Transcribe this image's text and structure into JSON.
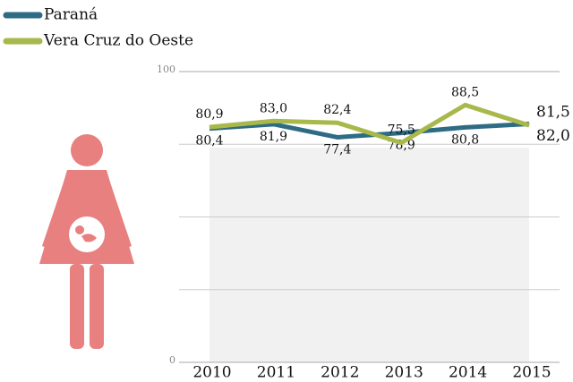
{
  "chart_data": {
    "type": "line",
    "categories": [
      "2010",
      "2011",
      "2012",
      "2013",
      "2014",
      "2015"
    ],
    "series": [
      {
        "name": "Paraná",
        "color": "#2e6b84",
        "values": [
          80.4,
          81.9,
          77.4,
          78.9,
          80.8,
          82.0
        ],
        "value_labels": [
          "80,4",
          "81,9",
          "77,4",
          "78,9",
          "80,8",
          "82,0"
        ]
      },
      {
        "name": "Vera Cruz do Oeste",
        "color": "#a8b84a",
        "values": [
          80.9,
          83.0,
          82.4,
          75.5,
          88.5,
          81.5
        ],
        "value_labels": [
          "80,9",
          "83,0",
          "82,4",
          "75,5",
          "88,5",
          "81,5"
        ]
      }
    ],
    "ylim": [
      0,
      100
    ],
    "yticks": [
      0,
      100
    ],
    "grid": true
  }
}
